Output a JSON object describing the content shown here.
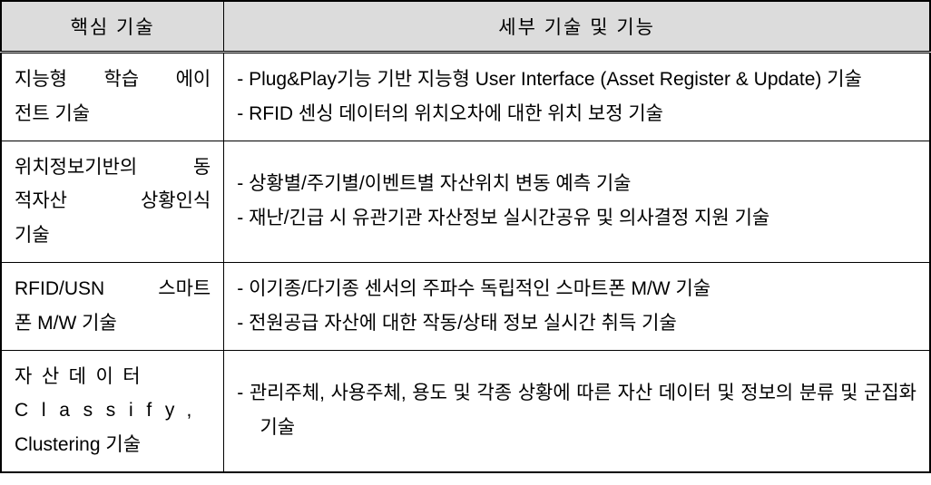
{
  "headers": {
    "core_tech": "핵심 기술",
    "detail_tech": "세부 기술 및 기능"
  },
  "rows": [
    {
      "core_lines": [
        "지능형 학습 에이",
        "전트 기술"
      ],
      "details": [
        "-  Plug&Play기능 기반 지능형 User Interface (Asset Register & Update) 기술",
        "- RFID 센싱 데이터의 위치오차에 대한 위치 보정 기술"
      ]
    },
    {
      "core_lines": [
        "위치정보기반의 동",
        "적자산   상황인식",
        "기술"
      ],
      "details": [
        "- 상황별/주기별/이벤트별 자산위치 변동 예측 기술",
        "- 재난/긴급 시 유관기관 자산정보 실시간공유 및 의사결정 지원 기술"
      ]
    },
    {
      "core_lines": [
        "RFID/USN 스마트",
        "폰 M/W 기술"
      ],
      "details": [
        "- 이기종/다기종 센서의 주파수 독립적인 스마트폰 M/W 기술",
        "- 전원공급 자산에 대한 작동/상태 정보 실시간 취득 기술"
      ]
    },
    {
      "core_lines_special": {
        "line1": "자산데이터",
        "line2": "Classify,",
        "line3": "Clustering 기술"
      },
      "details": [
        "- 관리주체, 사용주체, 용도 및 각종 상황에 따른 자산 데이터 및 정보의 분류 및 군집화 기술"
      ]
    }
  ]
}
